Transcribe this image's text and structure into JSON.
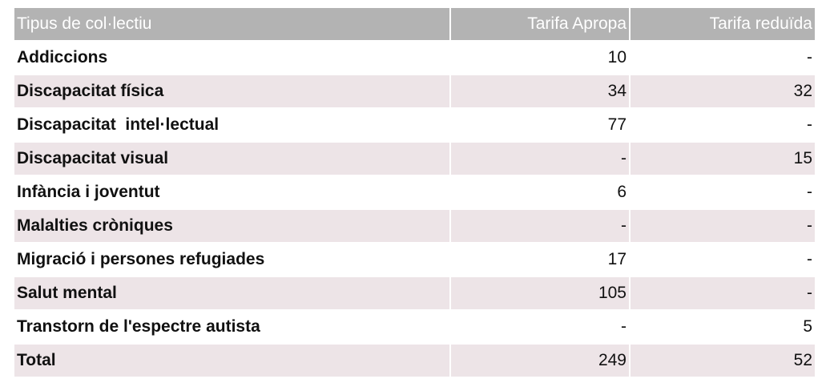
{
  "table": {
    "header": [
      "Tipus de col·lectiu",
      "Tarifa Apropa",
      "Tarifa reduïda"
    ],
    "rows": [
      [
        "Addiccions",
        10,
        "-"
      ],
      [
        "Discapacitat física",
        34,
        32
      ],
      [
        "Discapacitat  intel·lectual",
        77,
        "-"
      ],
      [
        "Discapacitat visual",
        "-",
        15
      ],
      [
        "Infància i joventut",
        6,
        "-"
      ],
      [
        "Malalties cròniques",
        "-",
        "-"
      ],
      [
        "Migració i persones refugiades",
        17,
        "-"
      ],
      [
        "Salut mental",
        105,
        "-"
      ],
      [
        "Transtorn de l'espectre autista",
        "-",
        5
      ],
      [
        "Total",
        249,
        52
      ]
    ]
  }
}
